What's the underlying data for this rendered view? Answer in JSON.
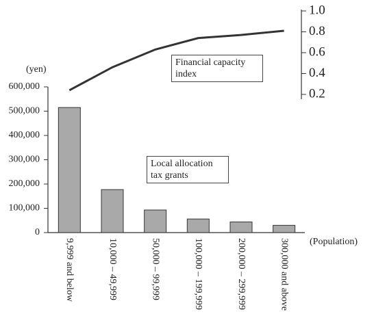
{
  "chart_data": {
    "type": "bar_line",
    "categories": [
      "9,999 and below",
      "10,000 – 49,999",
      "50,000 – 99,999",
      "100,000 – 199,999",
      "200,000 – 299,999",
      "300,000 and above"
    ],
    "series": [
      {
        "name": "Local allocation tax grants",
        "type": "bar",
        "color": "#a9a9a9",
        "values": [
          515000,
          177000,
          93000,
          56000,
          44000,
          30000
        ]
      },
      {
        "name": "Financial capacity index",
        "type": "line",
        "axis": "y2",
        "color": "#333333",
        "values": [
          0.24,
          0.46,
          0.63,
          0.74,
          0.77,
          0.81
        ]
      }
    ],
    "y_label": "(yen)",
    "x_label": "(Population)",
    "ylim": [
      0,
      600000
    ],
    "yticks": [
      0,
      {
        "value": 100000,
        "label": "100,000"
      },
      {
        "value": 200000,
        "label": "200,000"
      },
      {
        "value": 300000,
        "label": "300,000"
      },
      {
        "value": 400000,
        "label": "400,000"
      },
      {
        "value": 500000,
        "label": "500,000"
      },
      {
        "value": 600000,
        "label": "600,000"
      }
    ],
    "y2lim": [
      0.2,
      1
    ],
    "y2ticks": [
      0.2,
      0.4,
      0.6,
      0.8,
      {
        "value": 1,
        "label": "1.0"
      }
    ]
  }
}
